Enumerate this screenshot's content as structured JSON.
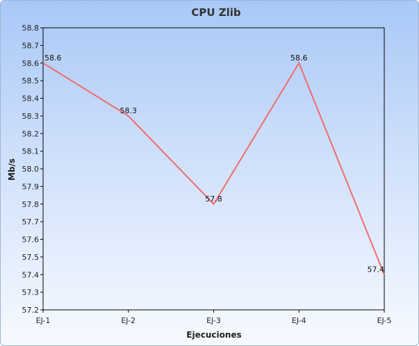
{
  "chart_data": {
    "type": "line",
    "title": "CPU Zlib",
    "xlabel": "Ejecuciones",
    "ylabel": "Mb/s",
    "categories": [
      "EJ-1",
      "EJ-2",
      "EJ-3",
      "EJ-4",
      "EJ-5"
    ],
    "series": [
      {
        "values": [
          58.6,
          58.3,
          57.8,
          58.6,
          57.4
        ],
        "color": "#f26b6b"
      }
    ],
    "ylim": [
      57.2,
      58.8
    ],
    "ytick_step": 0.1,
    "data_labels": [
      "58.6",
      "58.3",
      "57.8",
      "58.6",
      "57.4"
    ],
    "grid": false,
    "legend": "none"
  }
}
